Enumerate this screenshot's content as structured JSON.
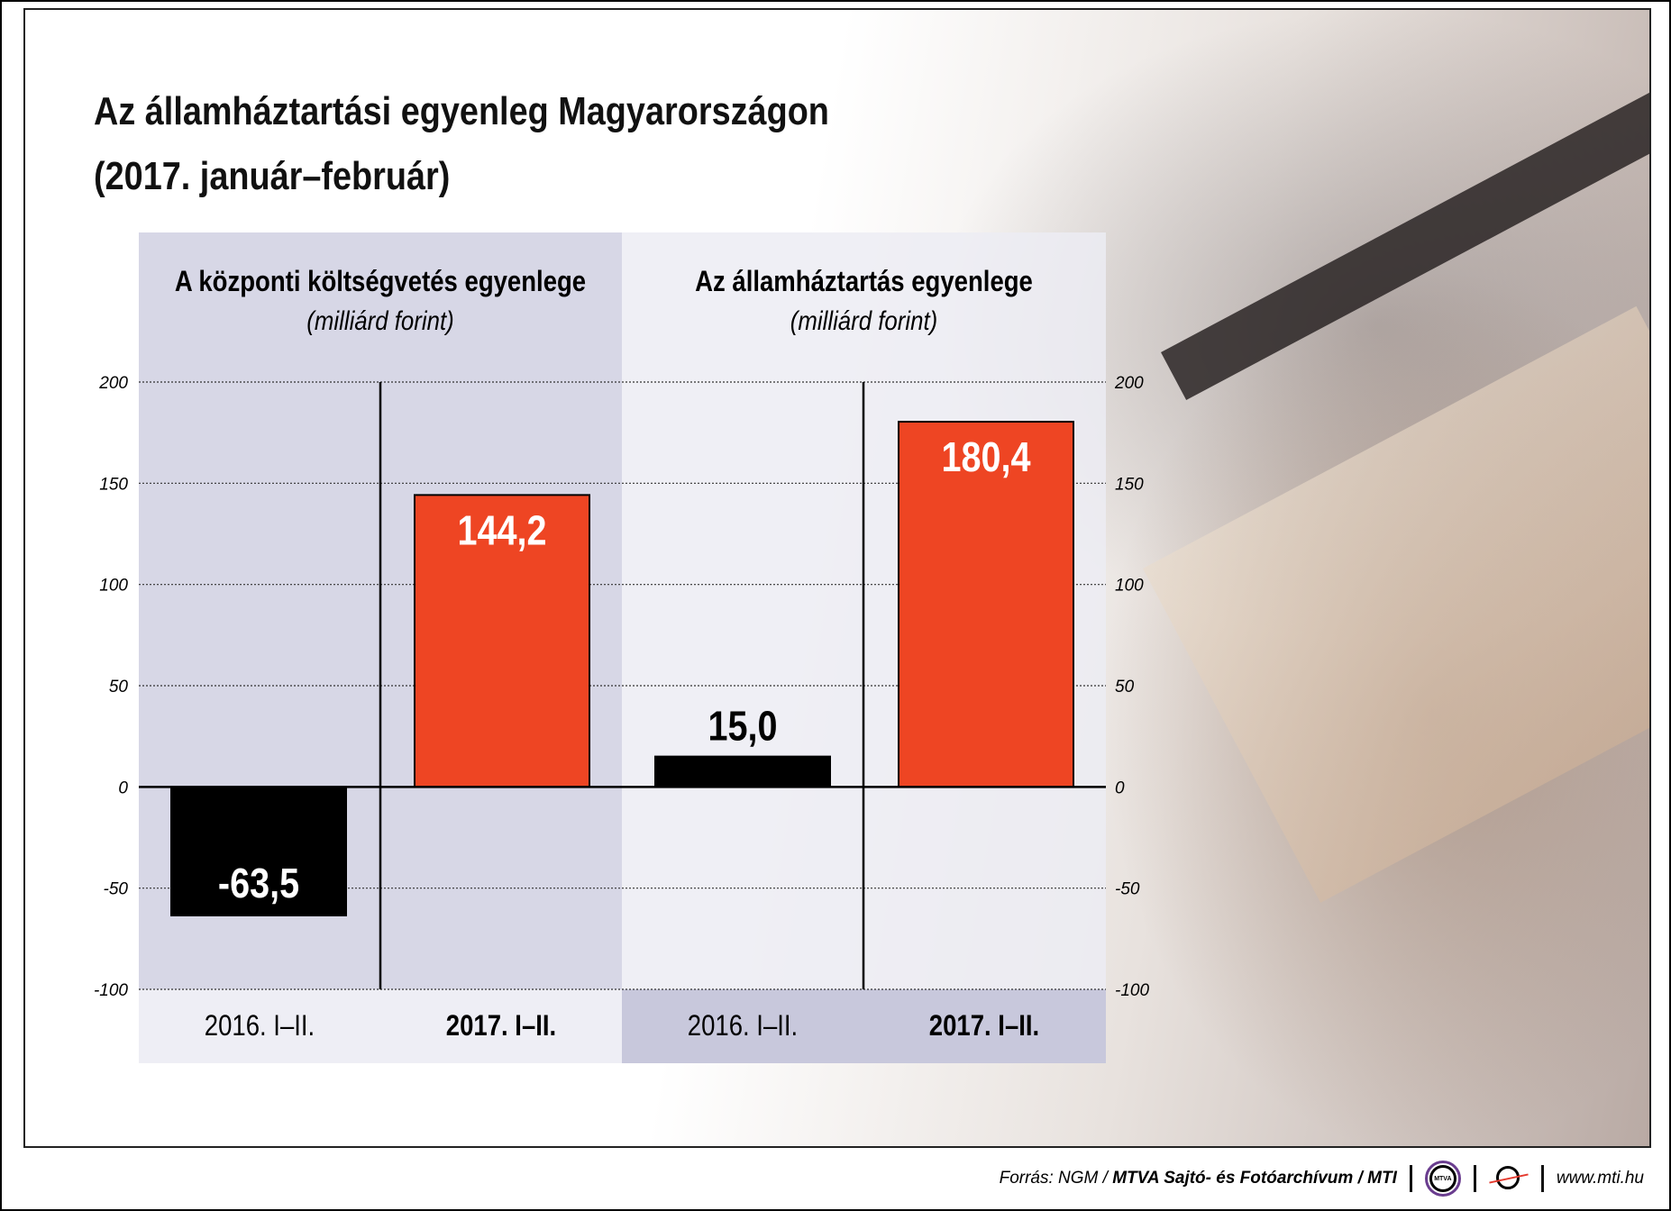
{
  "title_line1": "Az államháztartási egyenleg Magyarországon",
  "title_line2": "(2017. január–február)",
  "chart_data": [
    {
      "type": "bar",
      "title": "A központi költségvetés egyenlege",
      "subtitle": "(milliárd forint)",
      "categories": [
        "2016. I–II.",
        "2017. I–II."
      ],
      "values": [
        -63.5,
        144.2
      ],
      "value_labels": [
        "-63,5",
        "144,2"
      ],
      "colors": [
        "#000000",
        "#ee4523"
      ],
      "ylim": [
        -100,
        200
      ],
      "yticks": [
        "200",
        "150",
        "100",
        "50",
        "0",
        "-50",
        "-100"
      ],
      "grid": true
    },
    {
      "type": "bar",
      "title": "Az államháztartás egyenlege",
      "subtitle": "(milliárd forint)",
      "categories": [
        "2016. I–II.",
        "2017. I–II."
      ],
      "values": [
        15.0,
        180.4
      ],
      "value_labels": [
        "15,0",
        "180,4"
      ],
      "colors": [
        "#000000",
        "#ee4523"
      ],
      "ylim": [
        -100,
        200
      ],
      "yticks": [
        "200",
        "150",
        "100",
        "50",
        "0",
        "-50",
        "-100"
      ],
      "grid": true
    }
  ],
  "footer": {
    "source_prefix": "Forrás: NGM / ",
    "source_bold": "MTVA Sajtó- és Fotóarchívum / MTI",
    "logo1": "MTVA",
    "url": "www.mti.hu"
  }
}
